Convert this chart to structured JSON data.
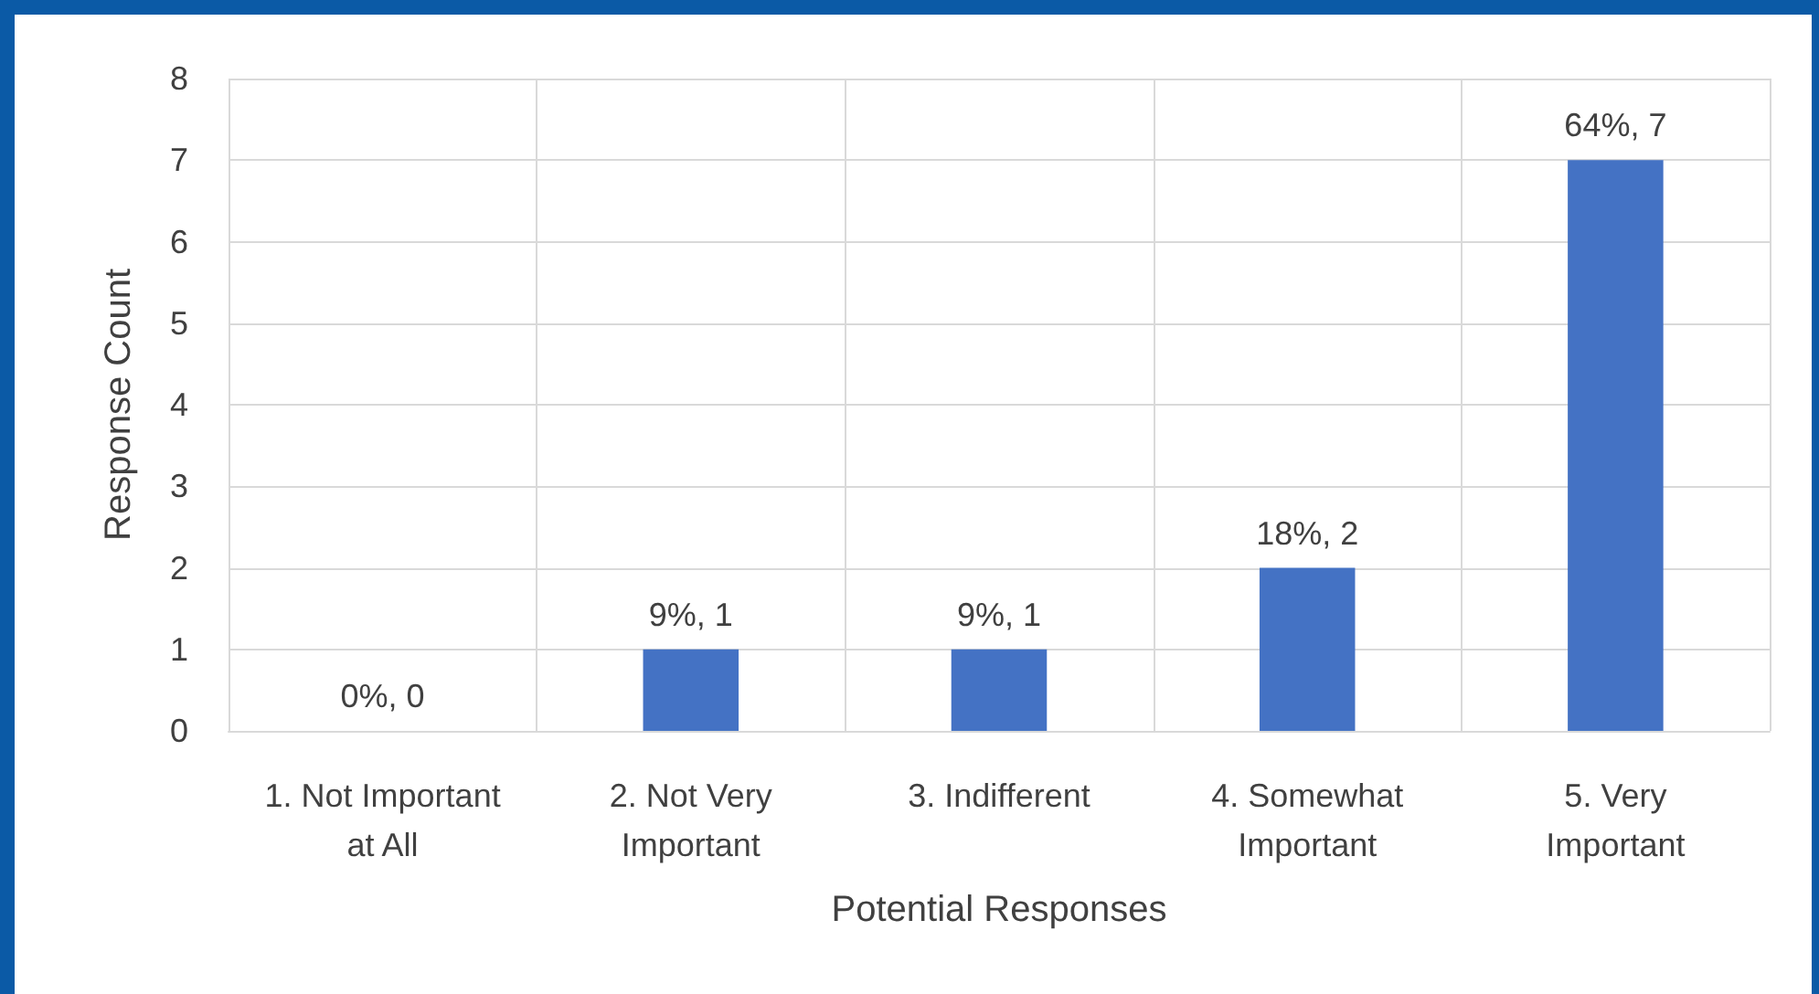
{
  "chart_data": {
    "type": "bar",
    "xlabel": "Potential Responses",
    "ylabel": "Response Count",
    "categories": [
      "1. Not Important\nat All",
      "2. Not Very\nImportant",
      "3. Indifferent",
      "4. Somewhat\nImportant",
      "5. Very\nImportant"
    ],
    "values": [
      0,
      1,
      1,
      2,
      7
    ],
    "color": "#4472c4",
    "value_labels": [
      "0%, 0",
      "9%, 1",
      "9%, 1",
      "18%, 2",
      "64%, 7"
    ],
    "ylim": [
      0,
      8
    ],
    "yticks": [
      0,
      1,
      2,
      3,
      4,
      5,
      6,
      7,
      8
    ],
    "grid": true
  }
}
